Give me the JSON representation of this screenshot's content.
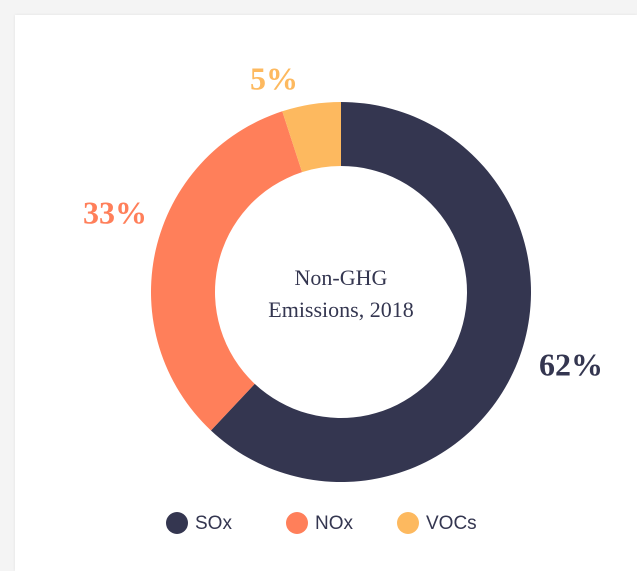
{
  "chart_data": {
    "type": "donut",
    "title": "Non-GHG Emissions, 2018",
    "categories": [
      "SOx",
      "NOx",
      "VOCs"
    ],
    "values": [
      62,
      33,
      5
    ],
    "value_labels": [
      "62%",
      "33%",
      "5%"
    ],
    "colors": [
      "#343650",
      "#ff7f5a",
      "#fdb95f"
    ]
  }
}
